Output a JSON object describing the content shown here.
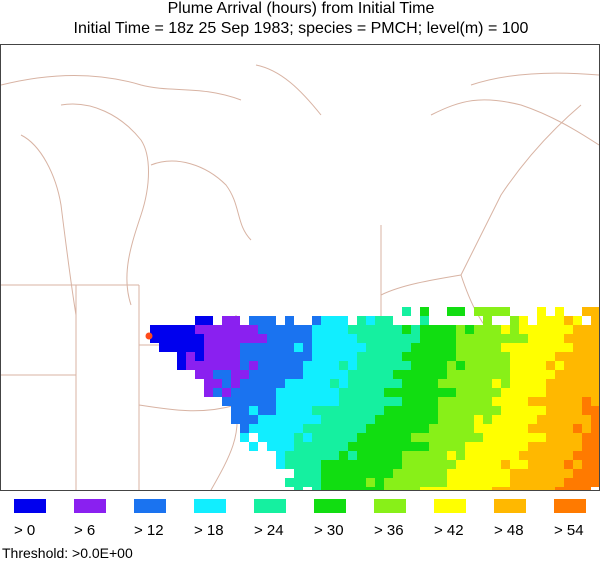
{
  "title": {
    "line1": "Plume Arrival (hours) from Initial Time",
    "line2": "Initial Time = 18z 25 Sep 1983;  species = PMCH;  level(m) =   100"
  },
  "legend": [
    {
      "label": "> 0",
      "color": "#0000ee"
    },
    {
      "label": "> 6",
      "color": "#8a20f0"
    },
    {
      "label": "> 12",
      "color": "#1a73f0"
    },
    {
      "label": "> 18",
      "color": "#11eeff"
    },
    {
      "label": "> 24",
      "color": "#15f0a0"
    },
    {
      "label": "> 30",
      "color": "#11dd11"
    },
    {
      "label": "> 36",
      "color": "#88f018"
    },
    {
      "label": "> 42",
      "color": "#ffff00"
    },
    {
      "label": "> 48",
      "color": "#ffb800"
    },
    {
      "label": "> 54",
      "color": "#ff7a00"
    }
  ],
  "threshold": "Threshold: >0.0E+00",
  "source_marker_color": "#ff4a1a",
  "boundary_color": "#d8b3a3"
}
